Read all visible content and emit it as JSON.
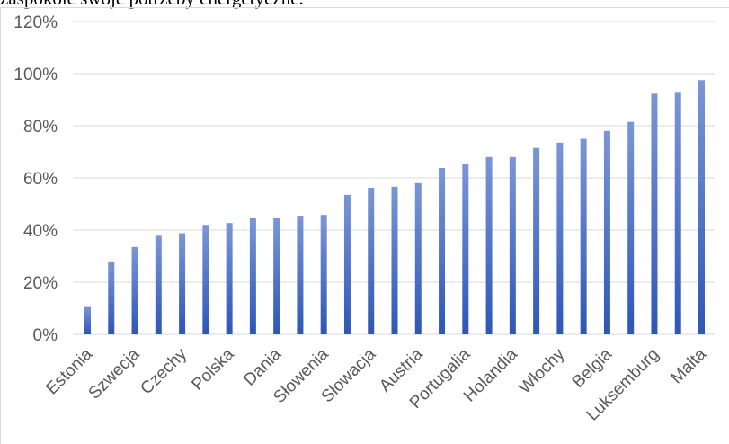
{
  "context_text": "zaspokoić swoje potrzeby energetyczne.",
  "chart_data": {
    "type": "bar",
    "title": "",
    "xlabel": "",
    "ylabel": "",
    "ylim": [
      0,
      120
    ],
    "yticks": [
      "0%",
      "20%",
      "40%",
      "60%",
      "80%",
      "100%",
      "120%"
    ],
    "grid": true,
    "legend": "none",
    "bar_color_top": "#7b96d6",
    "bar_color_bottom": "#2d56b8",
    "categories": [
      "Estonia",
      "",
      "Szwecja",
      "",
      "Czechy",
      "",
      "Polska",
      "",
      "Dania",
      "",
      "Słowenia",
      "",
      "Słowacja",
      "",
      "Austria",
      "",
      "Portugalia",
      "",
      "Holandia",
      "",
      "Włochy",
      "",
      "Belgia",
      "",
      "Luksemburg",
      "",
      "Malta"
    ],
    "values": [
      10.5,
      28,
      33.5,
      37.8,
      38.8,
      42,
      42.7,
      44.5,
      44.8,
      45.5,
      45.8,
      53.5,
      56.2,
      56.6,
      58,
      63.8,
      65.3,
      68,
      68,
      71.5,
      73.5,
      75,
      78,
      81.5,
      92.3,
      93,
      97.5
    ]
  }
}
